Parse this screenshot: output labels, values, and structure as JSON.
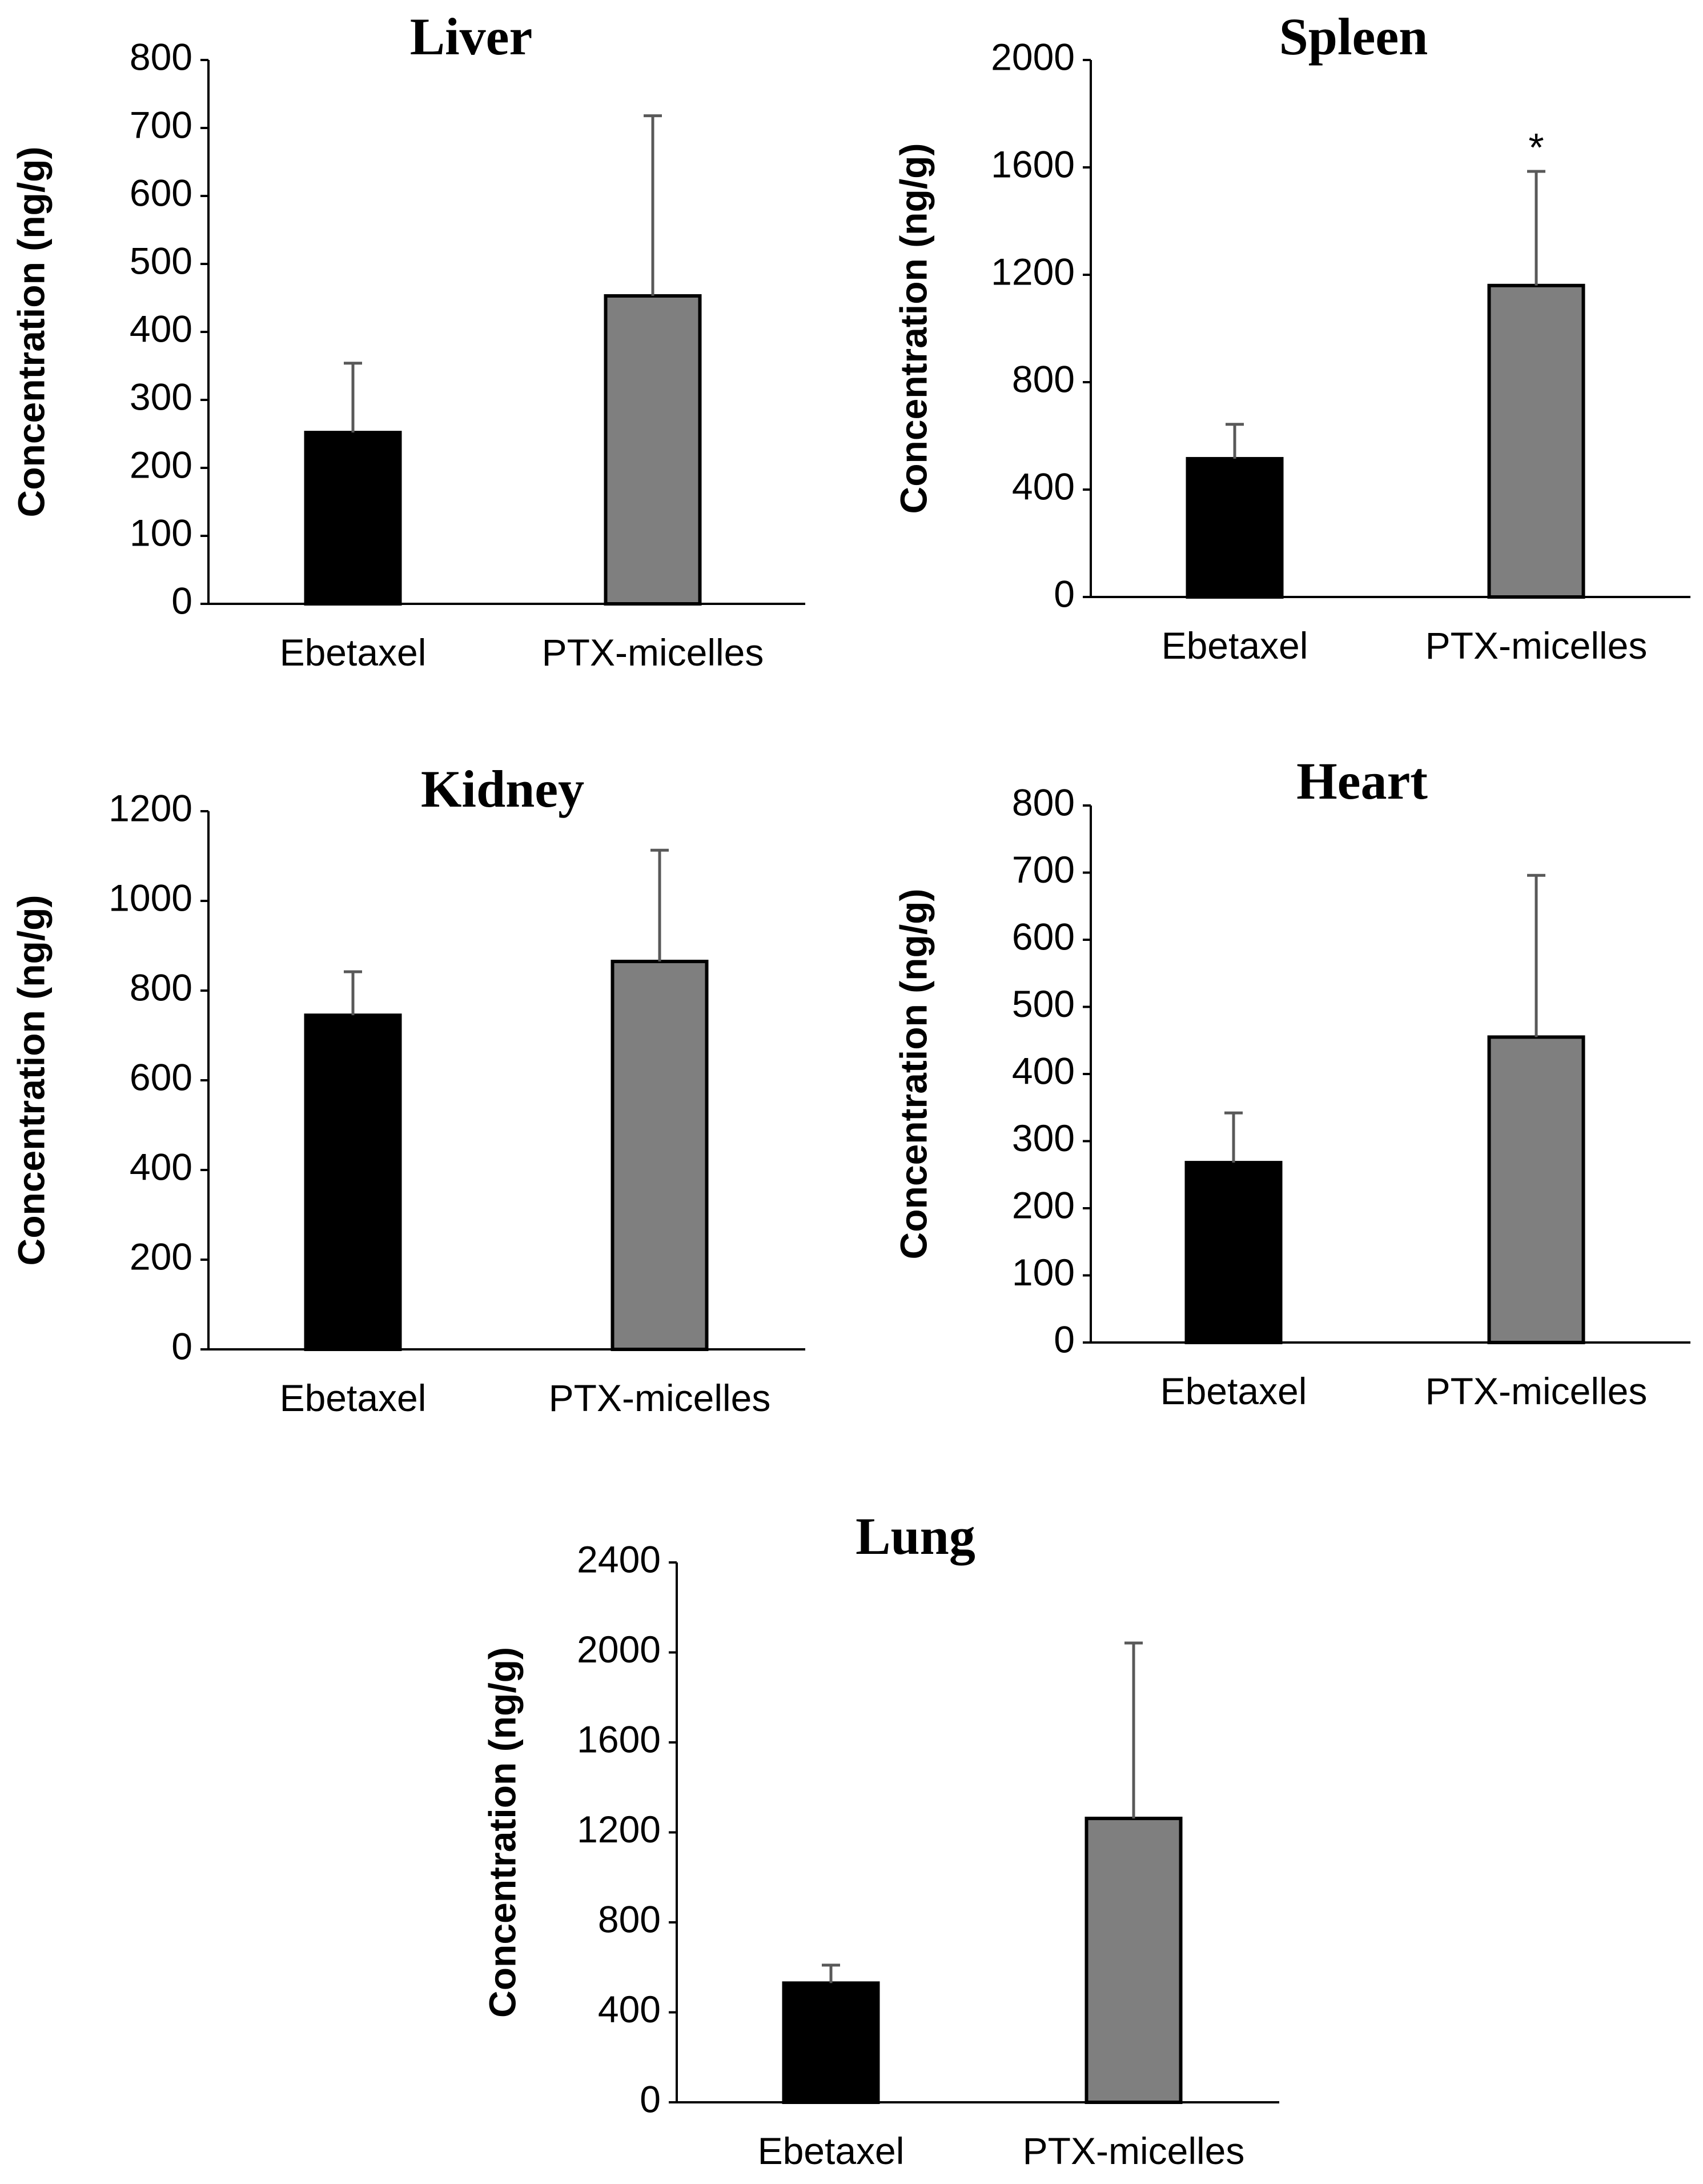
{
  "chart_data": [
    {
      "type": "bar",
      "title": "Liver",
      "ylabel": "Concentration (ng/g)",
      "categories": [
        "Ebetaxel",
        "PTX-micelles"
      ],
      "values": [
        252,
        453
      ],
      "errors": [
        102,
        265
      ],
      "colors": [
        "#000000",
        "#7f7f7f"
      ],
      "ylim": [
        0,
        800
      ],
      "yticks": [
        0,
        100,
        200,
        300,
        400,
        500,
        600,
        700,
        800
      ],
      "significance": [
        "",
        ""
      ]
    },
    {
      "type": "bar",
      "title": "Spleen",
      "ylabel": "Concentration (ng/g)",
      "categories": [
        "Ebetaxel",
        "PTX-micelles"
      ],
      "values": [
        515,
        1160
      ],
      "errors": [
        128,
        425
      ],
      "colors": [
        "#000000",
        "#7f7f7f"
      ],
      "ylim": [
        0,
        2000
      ],
      "yticks": [
        0,
        400,
        800,
        1200,
        1600,
        2000
      ],
      "significance": [
        "",
        "*"
      ]
    },
    {
      "type": "bar",
      "title": "Kidney",
      "ylabel": "Concentration (ng/g)",
      "categories": [
        "Ebetaxel",
        "PTX-micelles"
      ],
      "values": [
        745,
        865
      ],
      "errors": [
        97,
        248
      ],
      "colors": [
        "#000000",
        "#7f7f7f"
      ],
      "ylim": [
        0,
        1200
      ],
      "yticks": [
        0,
        200,
        400,
        600,
        800,
        1000,
        1200
      ],
      "significance": [
        "",
        ""
      ]
    },
    {
      "type": "bar",
      "title": "Heart",
      "ylabel": "Concentration (ng/g)",
      "categories": [
        "Ebetaxel",
        "PTX-micelles"
      ],
      "values": [
        268,
        455
      ],
      "errors": [
        74,
        241
      ],
      "colors": [
        "#000000",
        "#7f7f7f"
      ],
      "ylim": [
        0,
        800
      ],
      "yticks": [
        0,
        100,
        200,
        300,
        400,
        500,
        600,
        700,
        800
      ],
      "significance": [
        "",
        ""
      ]
    },
    {
      "type": "bar",
      "title": "Lung",
      "ylabel": "Concentration (ng/g)",
      "categories": [
        "Ebetaxel",
        "PTX-micelles"
      ],
      "values": [
        530,
        1262
      ],
      "errors": [
        80,
        780
      ],
      "colors": [
        "#000000",
        "#7f7f7f"
      ],
      "ylim": [
        0,
        2400
      ],
      "yticks": [
        0,
        400,
        800,
        1200,
        1600,
        2000,
        2400
      ],
      "significance": [
        "",
        ""
      ]
    }
  ]
}
